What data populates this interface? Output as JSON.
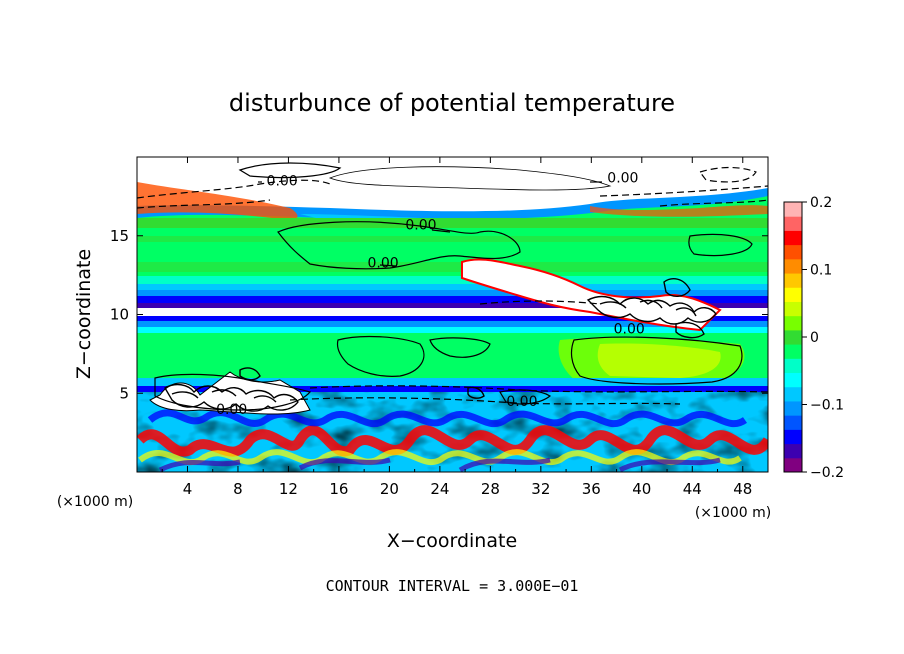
{
  "chart_data": {
    "type": "heatmap",
    "title": "disturbunce of potential temperature",
    "xlabel": "X−coordinate",
    "ylabel": "Z−coordinate",
    "x_unit": "(×1000 m)",
    "z_unit": "(×1000 m)",
    "xlim": [
      0,
      50
    ],
    "ylim": [
      0,
      20
    ],
    "x_ticks": [
      "4",
      "8",
      "12",
      "16",
      "20",
      "24",
      "28",
      "32",
      "36",
      "40",
      "44",
      "48"
    ],
    "y_ticks": [
      "5",
      "10",
      "15"
    ],
    "colorbar": {
      "range": [
        -0.2,
        0.2
      ],
      "tick_labels": [
        "0.2",
        "0.1",
        "0",
        "−0.1",
        "−0.2"
      ],
      "tick_values": [
        0.2,
        0.1,
        0,
        -0.1,
        -0.2
      ],
      "colors": [
        "#800080",
        "#3c00b0",
        "#0000ff",
        "#0055ff",
        "#0096ff",
        "#00c8ff",
        "#00ffff",
        "#00ffc8",
        "#00ff64",
        "#32dc32",
        "#78ff00",
        "#c8ff00",
        "#ffff00",
        "#ffc800",
        "#ff8c00",
        "#ff5000",
        "#ff0000",
        "#ff6464",
        "#ffb4b4"
      ]
    },
    "contour_labels": [
      {
        "text": "0.00",
        "x": 22.5,
        "z": 15.7
      },
      {
        "text": "0.00",
        "x": 19.5,
        "z": 13.3
      },
      {
        "text": "0.00",
        "x": 11.5,
        "z": 18.5
      },
      {
        "text": "0.00",
        "x": 38.5,
        "z": 18.7
      },
      {
        "text": "0.00",
        "x": 39.0,
        "z": 9.1
      },
      {
        "text": "0.00",
        "x": 7.5,
        "z": 4.0
      },
      {
        "text": "0.00",
        "x": 30.5,
        "z": 4.5
      }
    ],
    "contour_interval_text": "CONTOUR INTERVAL = 3.000E−01"
  }
}
